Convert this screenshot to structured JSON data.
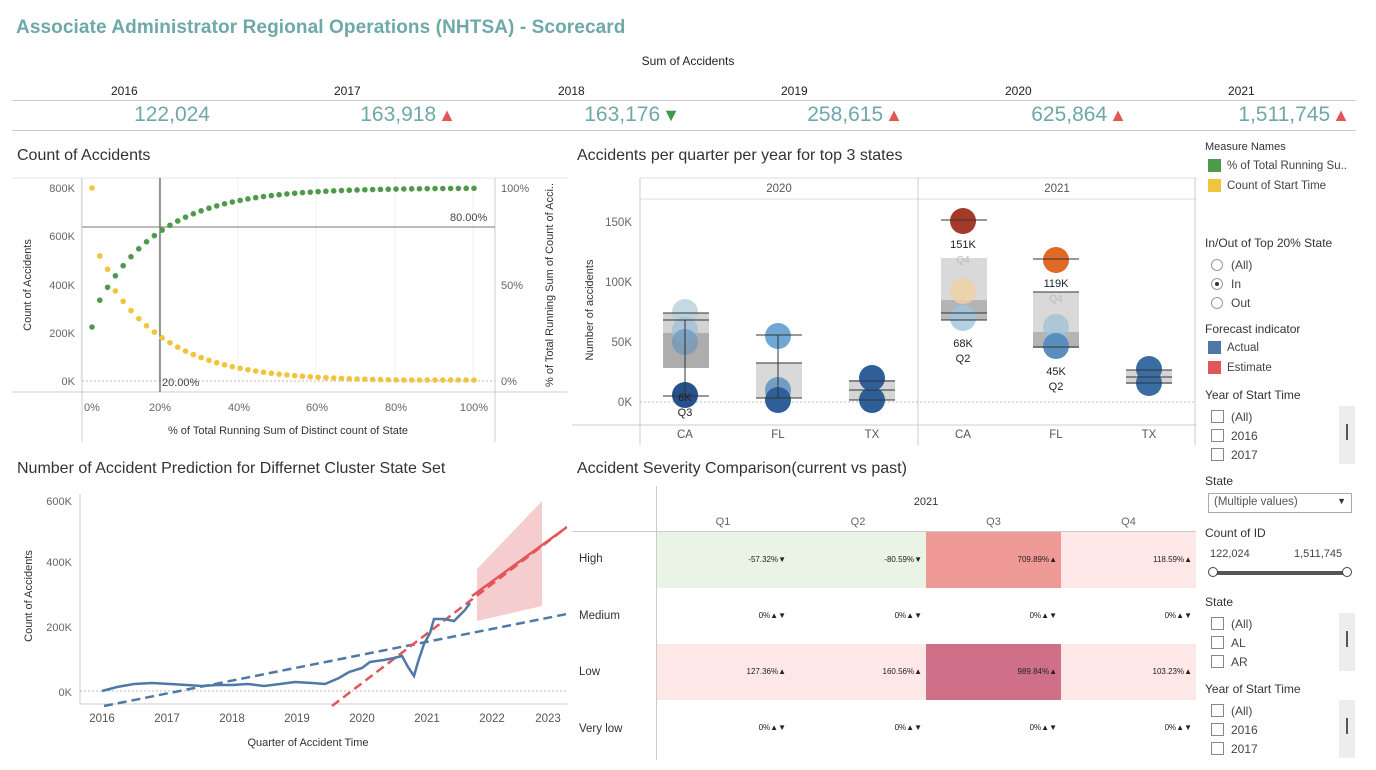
{
  "header": {
    "title": "Associate Administrator Regional Operations (NHTSA) - Scorecard",
    "kpi_label": "Sum of Accidents"
  },
  "kpis": [
    {
      "year": "2016",
      "value": "122,024",
      "arrow": "",
      "trend": "none"
    },
    {
      "year": "2017",
      "value": "163,918",
      "arrow": "▲",
      "trend": "up"
    },
    {
      "year": "2018",
      "value": "163,176",
      "arrow": "▼",
      "trend": "down"
    },
    {
      "year": "2019",
      "value": "258,615",
      "arrow": "▲",
      "trend": "up"
    },
    {
      "year": "2020",
      "value": "625,864",
      "arrow": "▲",
      "trend": "up"
    },
    {
      "year": "2021",
      "value": "1,511,745",
      "arrow": "▲",
      "trend": "up"
    }
  ],
  "colors": {
    "teal": "#6fa8a8",
    "green": "#4e9a4a",
    "yellow": "#f0c43c",
    "blue": "#4e79a7",
    "red": "#e15759",
    "up_arrow": "#e05555",
    "down_arrow": "#3e9a48"
  },
  "charts": {
    "count_of_accidents": {
      "title": "Count of Accidents",
      "ylabel": "Count of Accidents",
      "y2label": "% of Total Running Sum of Count of Acci..",
      "xlabel": "% of Total Running Sum of Distinct count of State",
      "yticks": [
        "800K",
        "600K",
        "400K",
        "200K",
        "0K"
      ],
      "y2ticks": [
        "100%",
        "50%",
        "0%"
      ],
      "xticks": [
        "0%",
        "20%",
        "40%",
        "60%",
        "80%",
        "100%"
      ],
      "ref_x_label": "20.00%",
      "ref_y_label": "80.00%"
    },
    "quarter_top3": {
      "title": "Accidents per quarter per year for top 3 states",
      "ylabel": "Number of accidents",
      "years": [
        "2020",
        "2021"
      ],
      "states": [
        "CA",
        "FL",
        "TX",
        "CA",
        "FL",
        "TX"
      ],
      "yticks": [
        "150K",
        "100K",
        "50K",
        "0K"
      ],
      "labels": {
        "ca2020_low": "6K",
        "ca2020_low_q": "Q3",
        "ca2021_high": "151K",
        "ca2021_high_q": "Q4",
        "ca2021_low": "68K",
        "ca2021_low_q": "Q2",
        "fl2021_high": "119K",
        "fl2021_high_q": "Q4",
        "fl2021_low": "45K",
        "fl2021_low_q": "Q2"
      }
    },
    "prediction": {
      "title": "Number of Accident Prediction for Differnet Cluster State Set",
      "ylabel": "Count of Accidents",
      "xlabel": "Quarter of Accident Time",
      "yticks": [
        "600K",
        "400K",
        "200K",
        "0K"
      ],
      "xticks": [
        "2016",
        "2017",
        "2018",
        "2019",
        "2020",
        "2021",
        "2022",
        "2023"
      ]
    },
    "severity": {
      "title": "Accident Severity Comparison(current vs past)",
      "year": "2021",
      "quarters": [
        "Q1",
        "Q2",
        "Q3",
        "Q4"
      ],
      "rows": [
        {
          "label": "High",
          "cells": [
            "-57.32%▼",
            "-80.59%▼",
            "709.89%▲",
            "118.59%▲"
          ]
        },
        {
          "label": "Medium",
          "cells": [
            "0%▲▼",
            "0%▲▼",
            "0%▲▼",
            "0%▲▼"
          ]
        },
        {
          "label": "Low",
          "cells": [
            "127.36%▲",
            "160.56%▲",
            "989.84%▲",
            "103.23%▲"
          ]
        },
        {
          "label": "Very low",
          "cells": [
            "0%▲▼",
            "0%▲▼",
            "0%▲▼",
            "0%▲▼"
          ]
        }
      ]
    }
  },
  "legend_measures": {
    "title": "Measure Names",
    "items": [
      {
        "label": "% of Total Running Su..",
        "color": "#4e9a4a"
      },
      {
        "label": "Count of Start Time",
        "color": "#f0c43c"
      }
    ]
  },
  "filter_top20": {
    "title": "In/Out of Top 20% State",
    "options": [
      {
        "label": "(All)",
        "checked": false
      },
      {
        "label": "In",
        "checked": true
      },
      {
        "label": "Out",
        "checked": false
      }
    ]
  },
  "legend_forecast": {
    "title": "Forecast indicator",
    "items": [
      {
        "label": "Actual",
        "color": "#4e79a7"
      },
      {
        "label": "Estimate",
        "color": "#e15759"
      }
    ]
  },
  "filter_year1": {
    "title": "Year of Start Time",
    "items": [
      "(All)",
      "2016",
      "2017"
    ]
  },
  "filter_state_dropdown": {
    "title": "State",
    "value": "(Multiple values)"
  },
  "filter_count_id": {
    "title": "Count of ID",
    "min": "122,024",
    "max": "1,511,745"
  },
  "filter_state_list": {
    "title": "State",
    "items": [
      "(All)",
      "AL",
      "AR"
    ]
  },
  "filter_year2": {
    "title": "Year of Start Time",
    "items": [
      "(All)",
      "2016",
      "2017"
    ]
  }
}
